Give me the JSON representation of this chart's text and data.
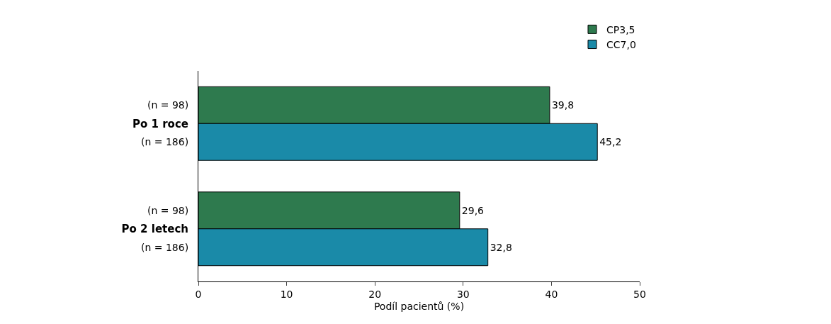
{
  "chart_data": {
    "type": "bar",
    "orientation": "horizontal",
    "categories": [
      "Po 1 roce",
      "Po 2 letech"
    ],
    "series": [
      {
        "name": "CP3,5",
        "color": "#2e7a4e",
        "values": [
          39.8,
          29.6
        ],
        "value_labels": [
          "39,8",
          "29,6"
        ]
      },
      {
        "name": "CC7,0",
        "color": "#1a8aa8",
        "values": [
          45.2,
          32.8
        ],
        "value_labels": [
          "45,2",
          "32,8"
        ]
      }
    ],
    "xlabel": "Podíl pacientů (%)",
    "xlim": [
      0,
      50
    ],
    "xticks": [
      0,
      10,
      20,
      30,
      40,
      50
    ],
    "annotations": [
      "(n = 98)",
      "(n = 186)",
      "(n = 98)",
      "(n = 186)"
    ],
    "legend": "top right"
  }
}
